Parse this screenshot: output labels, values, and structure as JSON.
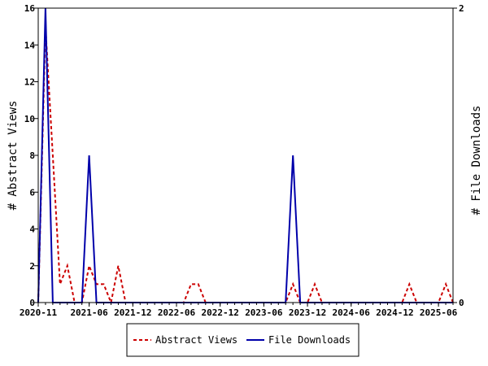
{
  "chart_data": {
    "type": "line",
    "title": "",
    "ylabel_left": "# Abstract Views",
    "ylabel_right": "# File Downloads",
    "ylim_left": [
      0,
      16
    ],
    "ylim_right": [
      0,
      2
    ],
    "yticks_left": [
      0,
      2,
      4,
      6,
      8,
      10,
      12,
      14,
      16
    ],
    "yticks_right": [
      0,
      2
    ],
    "x_tick_labels": [
      "2020-11",
      "2021-06",
      "2021-12",
      "2022-06",
      "2022-12",
      "2023-06",
      "2023-12",
      "2024-06",
      "2024-12",
      "2025-06"
    ],
    "x_tick_months": [
      "2020-11",
      "2021-06",
      "2021-12",
      "2022-06",
      "2022-12",
      "2023-06",
      "2023-12",
      "2024-06",
      "2024-12",
      "2025-06"
    ],
    "x_range": [
      "2020-11",
      "2025-08"
    ],
    "colors": {
      "abstract_views": "#cc0000",
      "file_downloads": "#0000aa"
    },
    "series": [
      {
        "name": "Abstract Views",
        "axis": "left",
        "style": "dashed",
        "x": [
          "2020-11",
          "2020-12",
          "2021-01",
          "2021-02",
          "2021-03",
          "2021-04",
          "2021-05",
          "2021-06",
          "2021-07",
          "2021-08",
          "2021-09",
          "2021-10",
          "2021-11",
          "2021-12",
          "2022-01",
          "2022-02",
          "2022-03",
          "2022-04",
          "2022-05",
          "2022-06",
          "2022-07",
          "2022-08",
          "2022-09",
          "2022-10",
          "2022-11",
          "2022-12",
          "2023-01",
          "2023-02",
          "2023-03",
          "2023-04",
          "2023-05",
          "2023-06",
          "2023-07",
          "2023-08",
          "2023-09",
          "2023-10",
          "2023-11",
          "2023-12",
          "2024-01",
          "2024-02",
          "2024-03",
          "2024-04",
          "2024-05",
          "2024-06",
          "2024-07",
          "2024-08",
          "2024-09",
          "2024-10",
          "2024-11",
          "2024-12",
          "2025-01",
          "2025-02",
          "2025-03",
          "2025-04",
          "2025-05",
          "2025-06",
          "2025-07",
          "2025-08"
        ],
        "values": [
          0,
          15,
          8,
          1,
          2,
          0,
          0,
          2,
          1,
          1,
          0,
          2,
          0,
          0,
          0,
          0,
          0,
          0,
          0,
          0,
          0,
          1,
          1,
          0,
          0,
          0,
          0,
          0,
          0,
          0,
          0,
          0,
          0,
          0,
          0,
          1,
          0,
          0,
          1,
          0,
          0,
          0,
          0,
          0,
          0,
          0,
          0,
          0,
          0,
          0,
          0,
          1,
          0,
          0,
          0,
          0,
          1,
          0
        ]
      },
      {
        "name": "File Downloads",
        "axis": "right",
        "style": "solid",
        "x": [
          "2020-11",
          "2020-12",
          "2021-01",
          "2021-02",
          "2021-03",
          "2021-04",
          "2021-05",
          "2021-06",
          "2021-07",
          "2021-08",
          "2021-09",
          "2021-10",
          "2021-11",
          "2021-12",
          "2022-01",
          "2022-02",
          "2022-03",
          "2022-04",
          "2022-05",
          "2022-06",
          "2022-07",
          "2022-08",
          "2022-09",
          "2022-10",
          "2022-11",
          "2022-12",
          "2023-01",
          "2023-02",
          "2023-03",
          "2023-04",
          "2023-05",
          "2023-06",
          "2023-07",
          "2023-08",
          "2023-09",
          "2023-10",
          "2023-11",
          "2023-12",
          "2024-01",
          "2024-02",
          "2024-03",
          "2024-04",
          "2024-05",
          "2024-06",
          "2024-07",
          "2024-08",
          "2024-09",
          "2024-10",
          "2024-11",
          "2024-12",
          "2025-01",
          "2025-02",
          "2025-03",
          "2025-04",
          "2025-05",
          "2025-06",
          "2025-07",
          "2025-08"
        ],
        "values": [
          0,
          2,
          0,
          0,
          0,
          0,
          0,
          1,
          0,
          0,
          0,
          0,
          0,
          0,
          0,
          0,
          0,
          0,
          0,
          0,
          0,
          0,
          0,
          0,
          0,
          0,
          0,
          0,
          0,
          0,
          0,
          0,
          0,
          0,
          0,
          1,
          0,
          0,
          0,
          0,
          0,
          0,
          0,
          0,
          0,
          0,
          0,
          0,
          0,
          0,
          0,
          0,
          0,
          0,
          0,
          0,
          0,
          0
        ]
      }
    ],
    "legend": {
      "placement": "bottom-center",
      "entries": [
        "Abstract Views",
        "File Downloads"
      ]
    }
  }
}
